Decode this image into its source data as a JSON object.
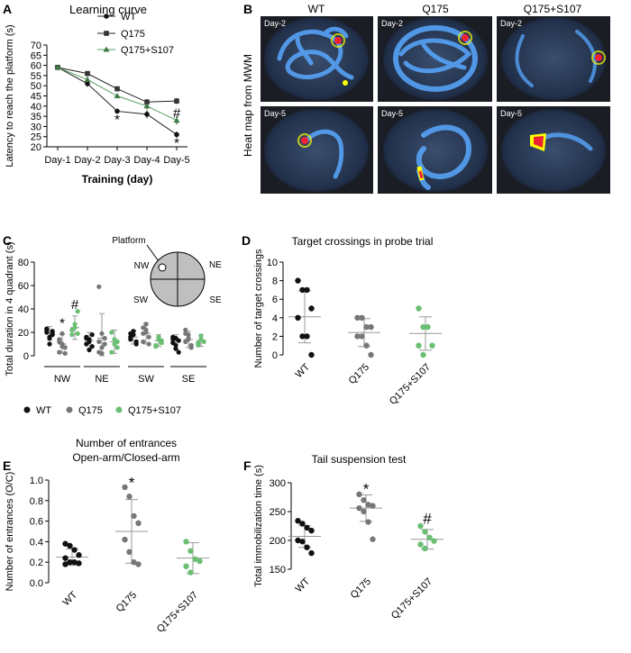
{
  "colors": {
    "wt": "#111111",
    "q175": "#777777",
    "s107": "#6abf73",
    "axis": "#000000",
    "whisker": "#999999"
  },
  "panels": {
    "A": {
      "letter": "A",
      "title": "Learning curve"
    },
    "B": {
      "letter": "B",
      "side_label": "Heat map from MWM",
      "columns": [
        "WT",
        "Q175",
        "Q175+S107"
      ],
      "rows": [
        "Day-2",
        "Day-5"
      ]
    },
    "C": {
      "letter": "C",
      "inset": {
        "platform_label": "Platform",
        "quadrants": [
          "NW",
          "NE",
          "SW",
          "SE"
        ]
      },
      "legend": [
        "WT",
        "Q175",
        "Q175+S107"
      ]
    },
    "D": {
      "letter": "D",
      "title": "Target crossings in probe trial"
    },
    "E": {
      "letter": "E",
      "title_line1": "Number of entrances",
      "title_line2": "Open-arm/Closed-arm"
    },
    "F": {
      "letter": "F",
      "title": "Tail suspension test"
    }
  },
  "chart_data": [
    {
      "id": "A",
      "type": "line",
      "categories": [
        "Day-1",
        "Day-2",
        "Day-3",
        "Day-4",
        "Day-5"
      ],
      "xlabel": "Training (day)",
      "ylabel": "Latency to reach the platform (s)",
      "ylim": [
        20,
        70
      ],
      "yticks": [
        20,
        25,
        30,
        35,
        40,
        45,
        50,
        55,
        60,
        65,
        70
      ],
      "legend_position": "top-center",
      "series": [
        {
          "name": "WT",
          "marker": "circle",
          "values": [
            59,
            51,
            37.5,
            36,
            26
          ],
          "errors": [
            1,
            1.5,
            1,
            2,
            1.5
          ]
        },
        {
          "name": "Q175",
          "marker": "square",
          "values": [
            59,
            56,
            48.5,
            42,
            42.5
          ],
          "errors": [
            1,
            1,
            1,
            1.5,
            1.5
          ]
        },
        {
          "name": "Q175+S107",
          "marker": "triangle",
          "values": [
            59,
            53,
            45,
            40,
            33
          ],
          "errors": [
            1,
            1.5,
            1,
            1.5,
            2
          ]
        }
      ],
      "annotations": [
        {
          "category": "Day-3",
          "y": 33.5,
          "text": "*"
        },
        {
          "category": "Day-5",
          "y": 36.5,
          "text": "#"
        },
        {
          "category": "Day-5",
          "y": 22,
          "text": "*"
        }
      ]
    },
    {
      "id": "C",
      "type": "scatter",
      "ylabel": "Total duration in 4 quadrant (s)",
      "ylim": [
        0,
        80
      ],
      "yticks": [
        0,
        20,
        40,
        60,
        80
      ],
      "groups": [
        "NW",
        "NE",
        "SW",
        "SE"
      ],
      "series": [
        {
          "name": "WT",
          "mean": [
            19,
            13,
            16,
            12
          ],
          "sd": [
            6,
            7,
            6,
            6
          ],
          "points": [
            [
              22,
              16,
              19,
              23,
              15,
              18,
              20,
              10,
              21
            ],
            [
              15,
              12,
              8,
              16,
              5,
              18,
              10,
              14
            ],
            [
              14,
              18,
              10,
              16,
              21,
              12,
              19
            ],
            [
              11,
              6,
              13,
              16,
              9,
              3,
              14,
              15
            ]
          ]
        },
        {
          "name": "Q175",
          "mean": [
            10,
            15,
            19,
            14
          ],
          "sd": [
            8,
            21,
            9,
            7
          ],
          "points": [
            [
              3,
              19,
              7,
              14,
              10,
              2,
              12,
              8
            ],
            [
              59,
              19,
              10,
              3,
              7,
              15,
              12,
              2
            ],
            [
              12,
              27,
              10,
              19,
              22,
              16,
              24,
              20
            ],
            [
              12,
              18,
              7,
              22,
              15,
              9,
              19,
              14
            ]
          ]
        },
        {
          "name": "Q175+S107",
          "mean": [
            24,
            12,
            13,
            13
          ],
          "sd": [
            10,
            10,
            5,
            5
          ],
          "points": [
            [
              18,
              24,
              38,
              22,
              27,
              19
            ],
            [
              20,
              14,
              7,
              3,
              10,
              12
            ],
            [
              9,
              16,
              11,
              8,
              14,
              13
            ],
            [
              11,
              17,
              12,
              9,
              14
            ]
          ]
        }
      ],
      "annotations": [
        {
          "group": "NW",
          "series": "Q175",
          "y": 28,
          "text": "*"
        },
        {
          "group": "NW",
          "series": "Q175+S107",
          "y": 44,
          "text": "#"
        }
      ]
    },
    {
      "id": "D",
      "type": "scatter",
      "categories": [
        "WT",
        "Q175",
        "Q175+S107"
      ],
      "ylabel": "Number of target crossings",
      "ylim": [
        0,
        10
      ],
      "yticks": [
        0,
        2,
        4,
        6,
        8,
        10
      ],
      "mean": [
        4.1,
        2.4,
        2.3
      ],
      "sd": [
        2.8,
        1.5,
        1.8
      ],
      "points": [
        [
          8,
          7,
          7,
          5,
          4,
          2,
          2,
          0
        ],
        [
          4,
          4,
          3,
          3,
          2,
          2,
          1,
          0
        ],
        [
          5,
          3,
          3,
          1,
          1,
          0
        ]
      ]
    },
    {
      "id": "E",
      "type": "scatter",
      "categories": [
        "WT",
        "Q175",
        "Q175+S107"
      ],
      "ylabel": "Number of entrances (O/C)",
      "ylim": [
        0,
        1.0
      ],
      "yticks": [
        0.0,
        0.2,
        0.4,
        0.6,
        0.8,
        1.0
      ],
      "mean": [
        0.25,
        0.5,
        0.24
      ],
      "sd": [
        0.08,
        0.31,
        0.15
      ],
      "points": [
        [
          0.38,
          0.36,
          0.32,
          0.27,
          0.24,
          0.2,
          0.2,
          0.19,
          0.18
        ],
        [
          0.93,
          0.84,
          0.65,
          0.58,
          0.42,
          0.3,
          0.2,
          0.18
        ],
        [
          0.4,
          0.31,
          0.23,
          0.21,
          0.16,
          0.1
        ]
      ],
      "annotations": [
        {
          "category": "Q175",
          "y": 0.98,
          "text": "*"
        }
      ]
    },
    {
      "id": "F",
      "type": "scatter",
      "categories": [
        "WT",
        "Q175",
        "Q175+S107"
      ],
      "ylabel": "Total immobilization time (s)",
      "ylim": [
        150,
        300
      ],
      "yticks": [
        150,
        200,
        250,
        300
      ],
      "mean": [
        207,
        256,
        202
      ],
      "sd": [
        19,
        23,
        17
      ],
      "points": [
        [
          234,
          229,
          222,
          217,
          200,
          198,
          188,
          178
        ],
        [
          280,
          270,
          262,
          260,
          256,
          250,
          232,
          202
        ],
        [
          225,
          215,
          205,
          199,
          193,
          186
        ]
      ],
      "annotations": [
        {
          "category": "Q175",
          "y": 290,
          "text": "*"
        },
        {
          "category": "Q175+S107",
          "y": 238,
          "text": "#"
        }
      ]
    }
  ]
}
